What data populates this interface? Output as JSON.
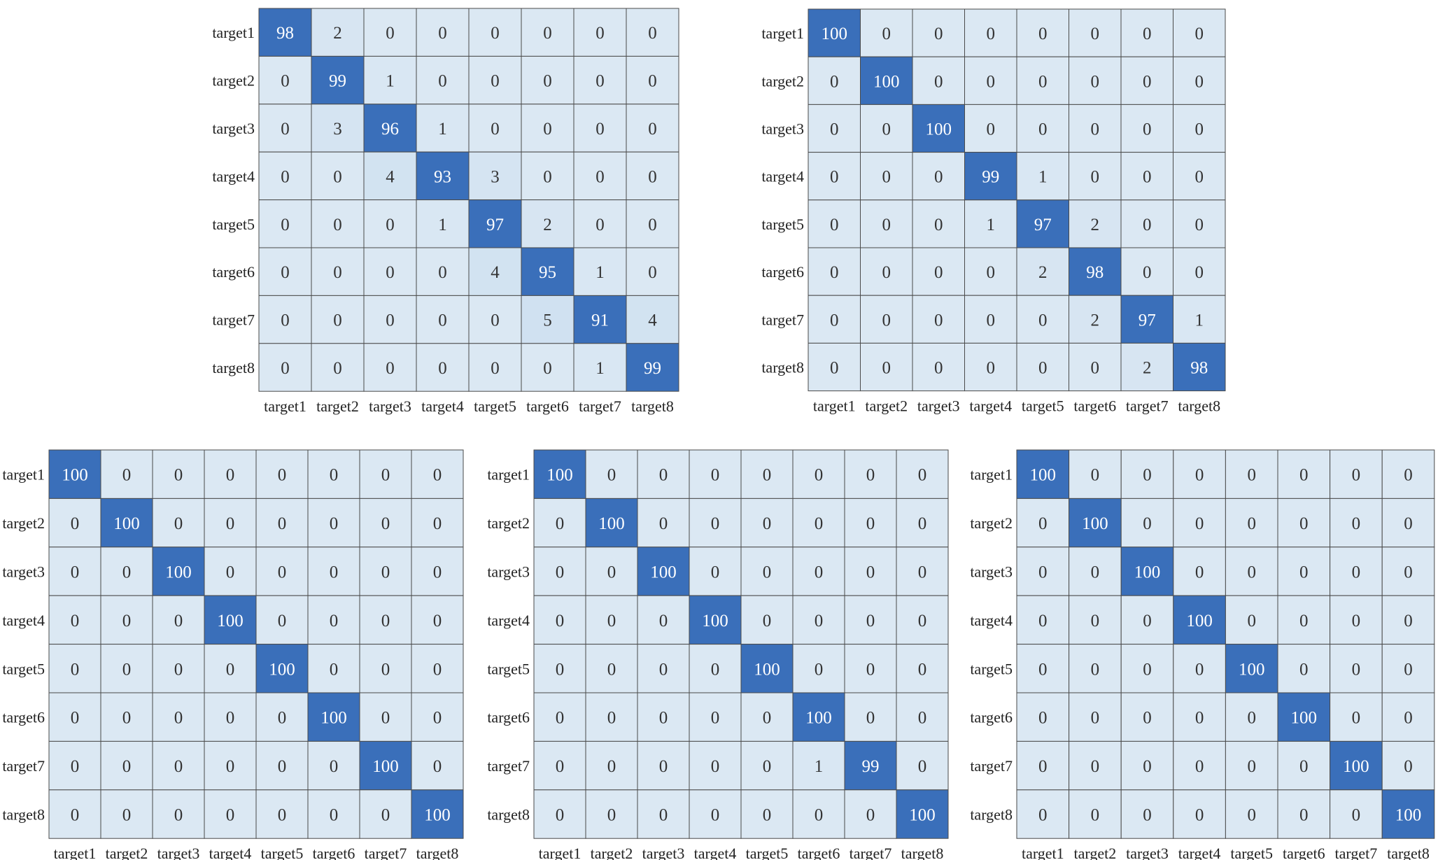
{
  "chart_data": [
    {
      "type": "heatmap",
      "rows": [
        "target1",
        "target2",
        "target3",
        "target4",
        "target5",
        "target6",
        "target7",
        "target8"
      ],
      "cols": [
        "target1",
        "target2",
        "target3",
        "target4",
        "target5",
        "target6",
        "target7",
        "target8"
      ],
      "values": [
        [
          98,
          2,
          0,
          0,
          0,
          0,
          0,
          0
        ],
        [
          0,
          99,
          1,
          0,
          0,
          0,
          0,
          0
        ],
        [
          0,
          3,
          96,
          1,
          0,
          0,
          0,
          0
        ],
        [
          0,
          0,
          4,
          93,
          3,
          0,
          0,
          0
        ],
        [
          0,
          0,
          0,
          1,
          97,
          2,
          0,
          0
        ],
        [
          0,
          0,
          0,
          0,
          4,
          95,
          1,
          0
        ],
        [
          0,
          0,
          0,
          0,
          0,
          5,
          91,
          4
        ],
        [
          0,
          0,
          0,
          0,
          0,
          0,
          1,
          99
        ]
      ],
      "value_range": [
        0,
        100
      ]
    },
    {
      "type": "heatmap",
      "rows": [
        "target1",
        "target2",
        "target3",
        "target4",
        "target5",
        "target6",
        "target7",
        "target8"
      ],
      "cols": [
        "target1",
        "target2",
        "target3",
        "target4",
        "target5",
        "target6",
        "target7",
        "target8"
      ],
      "values": [
        [
          100,
          0,
          0,
          0,
          0,
          0,
          0,
          0
        ],
        [
          0,
          100,
          0,
          0,
          0,
          0,
          0,
          0
        ],
        [
          0,
          0,
          100,
          0,
          0,
          0,
          0,
          0
        ],
        [
          0,
          0,
          0,
          99,
          1,
          0,
          0,
          0
        ],
        [
          0,
          0,
          0,
          1,
          97,
          2,
          0,
          0
        ],
        [
          0,
          0,
          0,
          0,
          2,
          98,
          0,
          0
        ],
        [
          0,
          0,
          0,
          0,
          0,
          2,
          97,
          1
        ],
        [
          0,
          0,
          0,
          0,
          0,
          0,
          2,
          98
        ]
      ],
      "value_range": [
        0,
        100
      ]
    },
    {
      "type": "heatmap",
      "rows": [
        "target1",
        "target2",
        "target3",
        "target4",
        "target5",
        "target6",
        "target7",
        "target8"
      ],
      "cols": [
        "target1",
        "target2",
        "target3",
        "target4",
        "target5",
        "target6",
        "target7",
        "target8"
      ],
      "values": [
        [
          100,
          0,
          0,
          0,
          0,
          0,
          0,
          0
        ],
        [
          0,
          100,
          0,
          0,
          0,
          0,
          0,
          0
        ],
        [
          0,
          0,
          100,
          0,
          0,
          0,
          0,
          0
        ],
        [
          0,
          0,
          0,
          100,
          0,
          0,
          0,
          0
        ],
        [
          0,
          0,
          0,
          0,
          100,
          0,
          0,
          0
        ],
        [
          0,
          0,
          0,
          0,
          0,
          100,
          0,
          0
        ],
        [
          0,
          0,
          0,
          0,
          0,
          0,
          100,
          0
        ],
        [
          0,
          0,
          0,
          0,
          0,
          0,
          0,
          100
        ]
      ],
      "value_range": [
        0,
        100
      ]
    },
    {
      "type": "heatmap",
      "rows": [
        "target1",
        "target2",
        "target3",
        "target4",
        "target5",
        "target6",
        "target7",
        "target8"
      ],
      "cols": [
        "target1",
        "target2",
        "target3",
        "target4",
        "target5",
        "target6",
        "target7",
        "target8"
      ],
      "values": [
        [
          100,
          0,
          0,
          0,
          0,
          0,
          0,
          0
        ],
        [
          0,
          100,
          0,
          0,
          0,
          0,
          0,
          0
        ],
        [
          0,
          0,
          100,
          0,
          0,
          0,
          0,
          0
        ],
        [
          0,
          0,
          0,
          100,
          0,
          0,
          0,
          0
        ],
        [
          0,
          0,
          0,
          0,
          100,
          0,
          0,
          0
        ],
        [
          0,
          0,
          0,
          0,
          0,
          100,
          0,
          0
        ],
        [
          0,
          0,
          0,
          0,
          0,
          1,
          99,
          0
        ],
        [
          0,
          0,
          0,
          0,
          0,
          0,
          0,
          100
        ]
      ],
      "value_range": [
        0,
        100
      ]
    },
    {
      "type": "heatmap",
      "rows": [
        "target1",
        "target2",
        "target3",
        "target4",
        "target5",
        "target6",
        "target7",
        "target8"
      ],
      "cols": [
        "target1",
        "target2",
        "target3",
        "target4",
        "target5",
        "target6",
        "target7",
        "target8"
      ],
      "values": [
        [
          100,
          0,
          0,
          0,
          0,
          0,
          0,
          0
        ],
        [
          0,
          100,
          0,
          0,
          0,
          0,
          0,
          0
        ],
        [
          0,
          0,
          100,
          0,
          0,
          0,
          0,
          0
        ],
        [
          0,
          0,
          0,
          100,
          0,
          0,
          0,
          0
        ],
        [
          0,
          0,
          0,
          0,
          100,
          0,
          0,
          0
        ],
        [
          0,
          0,
          0,
          0,
          0,
          100,
          0,
          0
        ],
        [
          0,
          0,
          0,
          0,
          0,
          0,
          100,
          0
        ],
        [
          0,
          0,
          0,
          0,
          0,
          0,
          0,
          100
        ]
      ],
      "value_range": [
        0,
        100
      ]
    }
  ],
  "colors": {
    "high": "#3a6fba",
    "low": "#dbe8f3",
    "mid": "#c9ddef",
    "grid": "#4a4a4a",
    "text_dark": "#333333",
    "text_light": "#ffffff"
  }
}
